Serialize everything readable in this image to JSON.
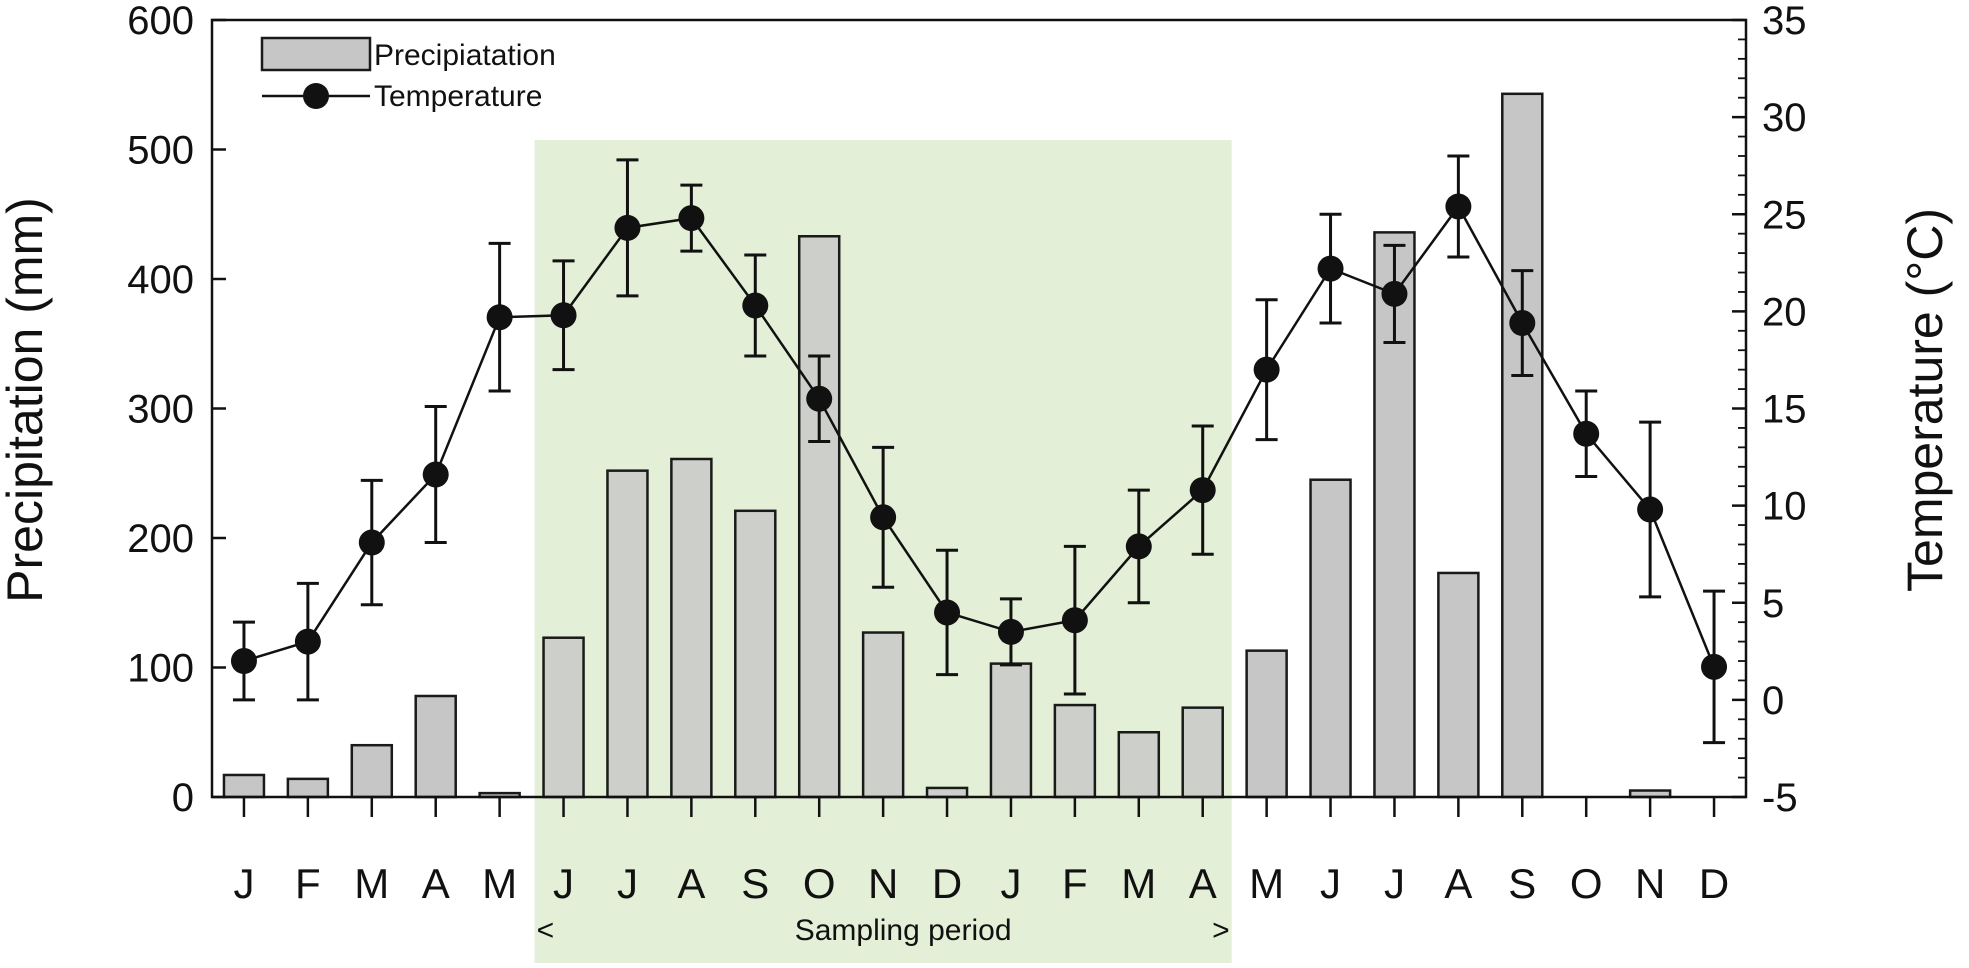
{
  "chart_data": {
    "type": "bar",
    "title": "",
    "categories": [
      "J",
      "F",
      "M",
      "A",
      "M",
      "J",
      "J",
      "A",
      "S",
      "O",
      "N",
      "D",
      "J",
      "F",
      "M",
      "A",
      "M",
      "J",
      "J",
      "A",
      "S",
      "O",
      "N",
      "D"
    ],
    "y_left": {
      "label": "Precipitation (mm)",
      "lim": [
        0,
        600
      ],
      "ticks": [
        0,
        100,
        200,
        300,
        400,
        500,
        600
      ]
    },
    "y_right": {
      "label": "Temperature (°C)",
      "lim": [
        -5,
        35
      ],
      "ticks": [
        -5,
        0,
        5,
        10,
        15,
        20,
        25,
        30,
        35
      ]
    },
    "series": [
      {
        "name": "Precipiatation",
        "kind": "bar",
        "axis": "left",
        "values": [
          17,
          14,
          40,
          78,
          3,
          123,
          252,
          261,
          221,
          433,
          127,
          7,
          103,
          71,
          50,
          69,
          113,
          245,
          436,
          173,
          543,
          0,
          5,
          0
        ]
      },
      {
        "name": "Temperature",
        "kind": "line",
        "axis": "right",
        "values": [
          2.0,
          3.0,
          8.1,
          11.6,
          19.7,
          19.8,
          24.3,
          24.8,
          20.3,
          15.5,
          9.4,
          4.5,
          3.5,
          4.1,
          7.9,
          10.8,
          17.0,
          22.2,
          20.9,
          25.4,
          19.4,
          13.7,
          9.8,
          1.7
        ],
        "error": [
          2.0,
          3.0,
          3.2,
          3.5,
          3.8,
          2.8,
          3.5,
          1.7,
          2.6,
          2.2,
          3.6,
          3.2,
          1.7,
          3.8,
          2.9,
          3.3,
          3.6,
          2.8,
          2.5,
          2.6,
          2.7,
          2.2,
          4.5,
          3.9
        ]
      }
    ],
    "legend": {
      "position": "top-left"
    },
    "grid": false,
    "annotations": [
      {
        "text": "Sampling period",
        "from_index": 5,
        "to_index": 15,
        "left_marker": "<",
        "right_marker": ">"
      }
    ],
    "colors": {
      "bar_fill": "#c6c6c6",
      "bar_stroke": "#1a1a1a",
      "line": "#111111",
      "shade": "#e3efd6"
    }
  }
}
